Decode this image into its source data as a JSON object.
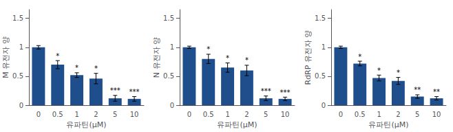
{
  "chart_data": [
    {
      "type": "bar",
      "ylabel": "M 유전자 양",
      "xlabel": "유파틴(μM)",
      "categories": [
        "0",
        "0.5",
        "1",
        "2",
        "5",
        "10"
      ],
      "values": [
        1.0,
        0.7,
        0.52,
        0.46,
        0.12,
        0.11
      ],
      "errors": [
        0.03,
        0.07,
        0.04,
        0.09,
        0.05,
        0.04
      ],
      "annotations": [
        {
          "x": "0.5",
          "text": "*"
        },
        {
          "x": "1",
          "text": "*"
        },
        {
          "x": "2",
          "text": "*"
        },
        {
          "x": "5",
          "text": "***"
        },
        {
          "x": "10",
          "text": "***"
        }
      ],
      "color": "#1F4E8C",
      "ylim": [
        0,
        1.65
      ],
      "yticks": [
        0,
        0.5,
        1,
        1.5
      ],
      "grid": false
    },
    {
      "type": "bar",
      "ylabel": "N 유전자 양",
      "xlabel": "유파틴(μM)",
      "categories": [
        "0",
        "0.5",
        "1",
        "2",
        "5",
        "10"
      ],
      "values": [
        1.0,
        0.8,
        0.65,
        0.6,
        0.12,
        0.11
      ],
      "errors": [
        0.02,
        0.08,
        0.08,
        0.09,
        0.04,
        0.03
      ],
      "annotations": [
        {
          "x": "0.5",
          "text": "*"
        },
        {
          "x": "1",
          "text": "*"
        },
        {
          "x": "2",
          "text": "*"
        },
        {
          "x": "5",
          "text": "***"
        },
        {
          "x": "10",
          "text": "***"
        }
      ],
      "color": "#1F4E8C",
      "ylim": [
        0,
        1.65
      ],
      "yticks": [
        0,
        0.5,
        1,
        1.5
      ],
      "grid": false
    },
    {
      "type": "bar",
      "ylabel": "RdRP 유전자 양",
      "xlabel": "유파틴(μM)",
      "categories": [
        "0",
        "0.5",
        "1",
        "2",
        "5",
        "10"
      ],
      "values": [
        1.0,
        0.72,
        0.47,
        0.42,
        0.15,
        0.12
      ],
      "errors": [
        0.02,
        0.04,
        0.05,
        0.06,
        0.03,
        0.03
      ],
      "annotations": [
        {
          "x": "0.5",
          "text": "*"
        },
        {
          "x": "1",
          "text": "*"
        },
        {
          "x": "2",
          "text": "*"
        },
        {
          "x": "5",
          "text": "**"
        },
        {
          "x": "10",
          "text": "**"
        }
      ],
      "color": "#1F4E8C",
      "ylim": [
        0,
        1.65
      ],
      "yticks": [
        0,
        0.5,
        1,
        1.5
      ],
      "grid": false
    }
  ]
}
